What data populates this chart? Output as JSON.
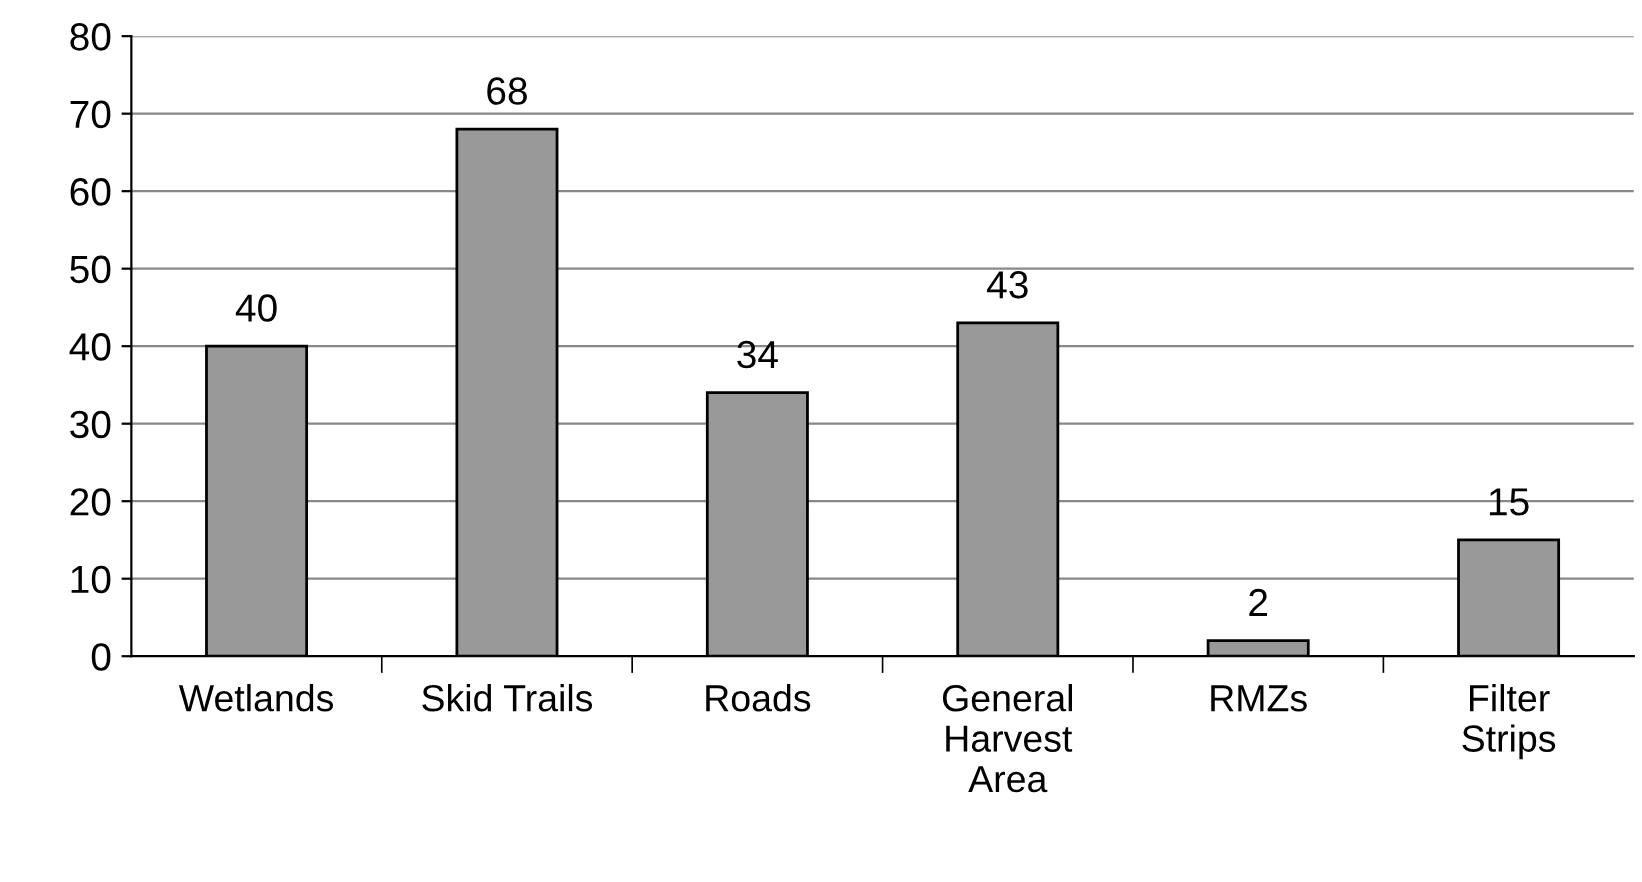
{
  "chart_data": {
    "type": "bar",
    "categories": [
      "Wetlands",
      "Skid Trails",
      "Roads",
      "General\nHarvest\nArea",
      "RMZs",
      "Filter\nStrips"
    ],
    "values": [
      40,
      68,
      34,
      43,
      2,
      15
    ],
    "color": "#999999",
    "ylim": [
      0,
      80
    ],
    "yticks": [
      0,
      10,
      20,
      30,
      40,
      50,
      60,
      70,
      80
    ],
    "grid": "y",
    "data_labels": true
  }
}
